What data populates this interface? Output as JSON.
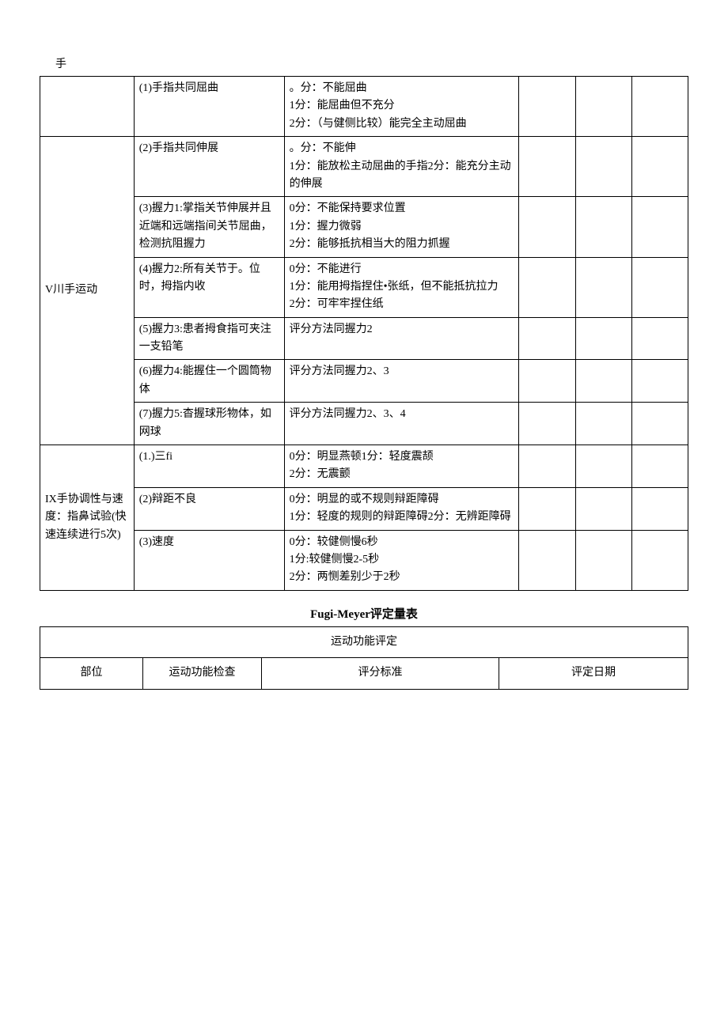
{
  "page": {
    "top_label": "手",
    "title2": "Fugi-Meyer评定量表"
  },
  "table1": {
    "rows": [
      {
        "section": "",
        "test": "(1)手指共同屈曲",
        "score": "。分：不能屈曲\n1分：能屈曲但不充分\n2分：（与健侧比较）能完全主动屈曲",
        "section_rowspan": 1
      },
      {
        "section": "V川手运动",
        "section_rowspan": 6,
        "test": "(2)手指共同伸展",
        "score": "。分：不能伸\n1分：能放松主动屈曲的手指2分：能充分主动的伸展\n"
      },
      {
        "test": "(3)握力1:掌指关节伸展并且近端和远端指间关节屈曲，检测抗阻握力",
        "score": "0分：不能保持要求位置\n1分：握力微弱\n2分：能够抵抗相当大的阻力抓握\n"
      },
      {
        "test": "(4)握力2:所有关节于。位时，拇指内收",
        "score": "0分：不能进行\n1分：能用拇指捏住•张纸，但不能抵抗拉力\n2分：可牢牢捏住纸"
      },
      {
        "test": "(5)握力3:患者拇食指可夹注一支铅笔\n",
        "score": "评分方法同握力2"
      },
      {
        "test": "(6)握力4:能握住一个圆筒物体",
        "score": "评分方法同握力2、3"
      },
      {
        "test": "(7)握力5:杳握球形物体，如网球",
        "score": "评分方法同握力2、3、4"
      },
      {
        "section": "IX手协调性与速度：指鼻试验(快速连续进行5次)",
        "section_rowspan": 3,
        "test": "(1.)三fi",
        "score": "0分：明显燕顿1分：轻度震颉\n2分：无震颤"
      },
      {
        "test": "(2)辩距不良",
        "score": "0分：明显的或不规则辩距障碍\n1分：轻度的规则的辩距障碍2分：无辨距障碍"
      },
      {
        "test": "(3)速度",
        "score": "0分：较健侧慢6秒\n1分:较健侧慢2-5秒\n2分：两恻差别少于2秒"
      }
    ]
  },
  "table2": {
    "header_merged": "运动功能评定",
    "cols": {
      "c1": "部位",
      "c2": "运动功能检查",
      "c3": "评分标准",
      "c4": "评定日期"
    }
  }
}
